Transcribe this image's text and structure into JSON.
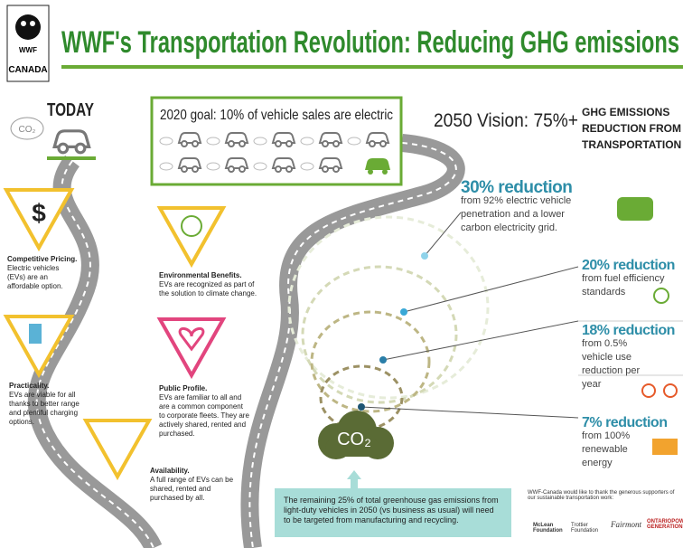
{
  "header": {
    "logo_text": "WWF",
    "logo_sub": "CANADA",
    "title": "WWF's Transportation Revolution: Reducing GHG emissions"
  },
  "today": {
    "label": "TODAY",
    "cloud": "CO₂"
  },
  "goal": {
    "title": "2020 goal: 10% of vehicle sales are electric"
  },
  "vision": {
    "lead": "2050 Vision: 75%+",
    "lines": [
      "GHG EMISSIONS",
      "REDUCTION FROM",
      "TRANSPORTATION"
    ]
  },
  "benefits": [
    {
      "title": "Competitive Pricing.",
      "text": "Electric vehicles (EVs) are an affordable option."
    },
    {
      "title": "Environmental Benefits.",
      "text": "EVs are recognized as part of the solution to climate change."
    },
    {
      "title": "Practicality.",
      "text": "EVs are viable for all thanks to better range and plentiful charging options."
    },
    {
      "title": "Public Profile.",
      "text": "EVs are familiar to all and are a common component to corporate fleets. They are actively shared, rented and purchased."
    },
    {
      "title": "Availability.",
      "text": "A full range of EVs can be shared, rented and purchased by all."
    }
  ],
  "reductions": [
    {
      "headline": "30% reduction",
      "text": "from 92% electric vehicle penetration and a lower carbon electricity grid."
    },
    {
      "headline": "20% reduction",
      "text": "from fuel efficiency standards"
    },
    {
      "headline": "18% reduction",
      "text": "from 0.5% vehicle use reduction per year"
    },
    {
      "headline": "7% reduction",
      "text": "from 100% renewable energy"
    }
  ],
  "center_cloud": "CO₂",
  "bottom_note": "The remaining 25% of total greenhouse gas emissions from light-duty vehicles in 2050 (vs business as usual) will need to be targeted from manufacturing and recycling.",
  "sponsors": {
    "thanks": "WWF-Canada would like to thank the generous supporters of our sustainable transportation work:",
    "names": [
      "McLean Foundation",
      "Trottier Foundation",
      "Fairmont",
      "ONTARIOPOWER GENERATION"
    ]
  }
}
